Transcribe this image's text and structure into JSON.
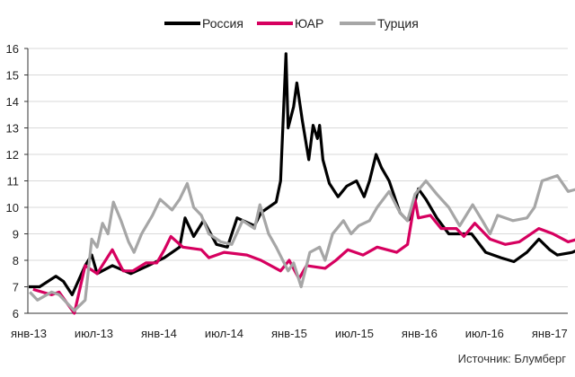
{
  "chart_data": {
    "type": "line",
    "title": "",
    "xlabel": "",
    "ylabel": "",
    "ylim": [
      6,
      16
    ],
    "yticks": [
      "6",
      "7",
      "8",
      "9",
      "10",
      "11",
      "12",
      "13",
      "14",
      "15",
      "16"
    ],
    "x_unit": "months since Jan 2013",
    "xlim": [
      0,
      50.6
    ],
    "xticks": [
      {
        "label": "янв-13",
        "x": 0
      },
      {
        "label": "июл-13",
        "x": 6
      },
      {
        "label": "янв-14",
        "x": 12
      },
      {
        "label": "июл-14",
        "x": 18
      },
      {
        "label": "янв-15",
        "x": 24
      },
      {
        "label": "июл-15",
        "x": 30
      },
      {
        "label": "янв-16",
        "x": 36
      },
      {
        "label": "июл-16",
        "x": 42
      },
      {
        "label": "янв-17",
        "x": 48
      }
    ],
    "grid": true,
    "legend_position": "top-center",
    "series": [
      {
        "name": "Россия",
        "color": "#000000",
        "points": [
          [
            0,
            7.0
          ],
          [
            1,
            7.0
          ],
          [
            2.5,
            7.4
          ],
          [
            3.2,
            7.2
          ],
          [
            4,
            6.7
          ],
          [
            5.2,
            7.8
          ],
          [
            5.8,
            8.2
          ],
          [
            6.3,
            7.5
          ],
          [
            7.7,
            7.8
          ],
          [
            9.4,
            7.5
          ],
          [
            11,
            7.8
          ],
          [
            12.5,
            8.1
          ],
          [
            13.9,
            8.5
          ],
          [
            14.4,
            9.6
          ],
          [
            15.2,
            8.9
          ],
          [
            16.1,
            9.5
          ],
          [
            17.3,
            8.6
          ],
          [
            18.3,
            8.5
          ],
          [
            19.2,
            9.6
          ],
          [
            20.8,
            9.3
          ],
          [
            21.4,
            9.8
          ],
          [
            22.8,
            10.2
          ],
          [
            23.2,
            11
          ],
          [
            23.7,
            15.8
          ],
          [
            23.9,
            13
          ],
          [
            24.4,
            13.8
          ],
          [
            24.7,
            14.7
          ],
          [
            25.2,
            13.3
          ],
          [
            25.8,
            11.8
          ],
          [
            26.2,
            13.1
          ],
          [
            26.6,
            12.6
          ],
          [
            26.8,
            13.1
          ],
          [
            27.1,
            11.8
          ],
          [
            27.7,
            10.9
          ],
          [
            28.5,
            10.4
          ],
          [
            29.3,
            10.8
          ],
          [
            30.2,
            11.0
          ],
          [
            30.9,
            10.4
          ],
          [
            31.4,
            11
          ],
          [
            32,
            12
          ],
          [
            32.5,
            11.5
          ],
          [
            33.2,
            11
          ],
          [
            34.2,
            9.8
          ],
          [
            34.9,
            9.5
          ],
          [
            35.2,
            9.6
          ],
          [
            35.9,
            10.7
          ],
          [
            36.6,
            10.3
          ],
          [
            37.6,
            9.6
          ],
          [
            38.7,
            9.0
          ],
          [
            40.8,
            9.0
          ],
          [
            42.1,
            8.3
          ],
          [
            43.5,
            8.1
          ],
          [
            44.7,
            7.95
          ],
          [
            45.9,
            8.3
          ],
          [
            47,
            8.8
          ],
          [
            48,
            8.4
          ],
          [
            48.7,
            8.2
          ],
          [
            50.1,
            8.3
          ],
          [
            50.6,
            8.4
          ]
        ]
      },
      {
        "name": "ЮАР",
        "color": "#d6005f",
        "points": [
          [
            0.4,
            6.9
          ],
          [
            2.1,
            6.7
          ],
          [
            2.8,
            6.8
          ],
          [
            4.2,
            6.0
          ],
          [
            5.2,
            7.8
          ],
          [
            6.3,
            7.5
          ],
          [
            7.7,
            8.4
          ],
          [
            8.7,
            7.6
          ],
          [
            9.6,
            7.6
          ],
          [
            10.8,
            7.9
          ],
          [
            11.8,
            7.9
          ],
          [
            12.5,
            8.4
          ],
          [
            13.1,
            8.9
          ],
          [
            14.2,
            8.5
          ],
          [
            15.9,
            8.4
          ],
          [
            16.6,
            8.1
          ],
          [
            18,
            8.3
          ],
          [
            20.1,
            8.2
          ],
          [
            21.4,
            8.0
          ],
          [
            23.2,
            7.6
          ],
          [
            24,
            8.0
          ],
          [
            24.9,
            7.3
          ],
          [
            25.6,
            7.8
          ],
          [
            27.3,
            7.7
          ],
          [
            28.3,
            8.0
          ],
          [
            29.4,
            8.4
          ],
          [
            30.8,
            8.2
          ],
          [
            32.1,
            8.5
          ],
          [
            33.9,
            8.3
          ],
          [
            34.9,
            8.6
          ],
          [
            35.6,
            10.3
          ],
          [
            35.9,
            9.6
          ],
          [
            37,
            9.7
          ],
          [
            38,
            9.2
          ],
          [
            39.4,
            9.2
          ],
          [
            40.1,
            8.9
          ],
          [
            41.1,
            9.4
          ],
          [
            42.5,
            8.8
          ],
          [
            43.9,
            8.6
          ],
          [
            45.2,
            8.7
          ],
          [
            47,
            9.2
          ],
          [
            48.3,
            9.0
          ],
          [
            49.7,
            8.7
          ],
          [
            50.6,
            8.8
          ]
        ]
      },
      {
        "name": "Турция",
        "color": "#a6a6a6",
        "points": [
          [
            0.1,
            6.8
          ],
          [
            0.8,
            6.5
          ],
          [
            2.1,
            6.8
          ],
          [
            2.8,
            6.7
          ],
          [
            4.2,
            6.1
          ],
          [
            5.2,
            6.5
          ],
          [
            5.8,
            8.8
          ],
          [
            6.3,
            8.5
          ],
          [
            6.8,
            9.4
          ],
          [
            7.3,
            9.0
          ],
          [
            7.8,
            10.2
          ],
          [
            8.5,
            9.5
          ],
          [
            9.2,
            8.7
          ],
          [
            9.7,
            8.3
          ],
          [
            10.4,
            9.0
          ],
          [
            11.4,
            9.7
          ],
          [
            12.1,
            10.3
          ],
          [
            13.2,
            9.9
          ],
          [
            13.9,
            10.3
          ],
          [
            14.6,
            10.9
          ],
          [
            15.2,
            10.0
          ],
          [
            15.9,
            9.7
          ],
          [
            16.6,
            9.0
          ],
          [
            17.7,
            8.7
          ],
          [
            18.7,
            8.6
          ],
          [
            19.7,
            9.5
          ],
          [
            20.8,
            9.2
          ],
          [
            21.3,
            10.1
          ],
          [
            22.1,
            9.0
          ],
          [
            22.8,
            8.5
          ],
          [
            23.9,
            7.6
          ],
          [
            24.4,
            7.9
          ],
          [
            25.1,
            7.0
          ],
          [
            25.9,
            8.3
          ],
          [
            26.8,
            8.5
          ],
          [
            27.3,
            8.0
          ],
          [
            28,
            9.0
          ],
          [
            29,
            9.5
          ],
          [
            29.7,
            9.0
          ],
          [
            30.4,
            9.3
          ],
          [
            31.4,
            9.5
          ],
          [
            32.1,
            10.0
          ],
          [
            33.2,
            10.6
          ],
          [
            34.2,
            9.8
          ],
          [
            34.9,
            9.5
          ],
          [
            35.6,
            10.5
          ],
          [
            36.6,
            11.0
          ],
          [
            37.6,
            10.5
          ],
          [
            38.7,
            10.0
          ],
          [
            39.7,
            9.3
          ],
          [
            40.9,
            10.1
          ],
          [
            41.8,
            9.5
          ],
          [
            42.5,
            9.0
          ],
          [
            43.2,
            9.7
          ],
          [
            44.6,
            9.5
          ],
          [
            45.9,
            9.6
          ],
          [
            46.6,
            10.0
          ],
          [
            47.3,
            11.0
          ],
          [
            48.7,
            11.2
          ],
          [
            49.7,
            10.6
          ],
          [
            50.6,
            10.7
          ]
        ]
      }
    ],
    "source": "Источник: Блумберг"
  }
}
